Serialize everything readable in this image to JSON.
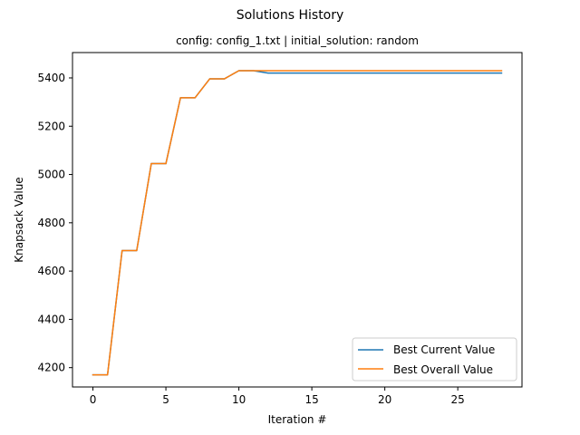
{
  "chart_data": {
    "type": "line",
    "title": "Solutions History",
    "subtitle": "config: config_1.txt | initial_solution: random",
    "xlabel": "Iteration #",
    "ylabel": "Knapsack Value",
    "xlim": [
      -1.4,
      29.4
    ],
    "ylim": [
      4120,
      5505
    ],
    "xticks": [
      0,
      5,
      10,
      15,
      20,
      25
    ],
    "yticks": [
      4200,
      4400,
      4600,
      4800,
      5000,
      5200,
      5400
    ],
    "grid": false,
    "legend_position": "lower-right",
    "x": [
      0,
      1,
      2,
      3,
      4,
      5,
      6,
      7,
      8,
      9,
      10,
      11,
      12,
      13,
      14,
      15,
      16,
      17,
      18,
      19,
      20,
      21,
      22,
      23,
      24,
      25,
      26,
      27,
      28
    ],
    "series": [
      {
        "name": "Best Current Value",
        "color": "#1f77b4",
        "values": [
          4170,
          4170,
          4685,
          4685,
          5045,
          5045,
          5318,
          5318,
          5396,
          5396,
          5430,
          5430,
          5420,
          5420,
          5420,
          5420,
          5420,
          5420,
          5420,
          5420,
          5420,
          5420,
          5420,
          5420,
          5420,
          5420,
          5420,
          5420,
          5420
        ]
      },
      {
        "name": "Best Overall Value",
        "color": "#ff7f0e",
        "values": [
          4170,
          4170,
          4685,
          4685,
          5045,
          5045,
          5318,
          5318,
          5396,
          5396,
          5430,
          5430,
          5430,
          5430,
          5430,
          5430,
          5430,
          5430,
          5430,
          5430,
          5430,
          5430,
          5430,
          5430,
          5430,
          5430,
          5430,
          5430,
          5430
        ]
      }
    ]
  }
}
